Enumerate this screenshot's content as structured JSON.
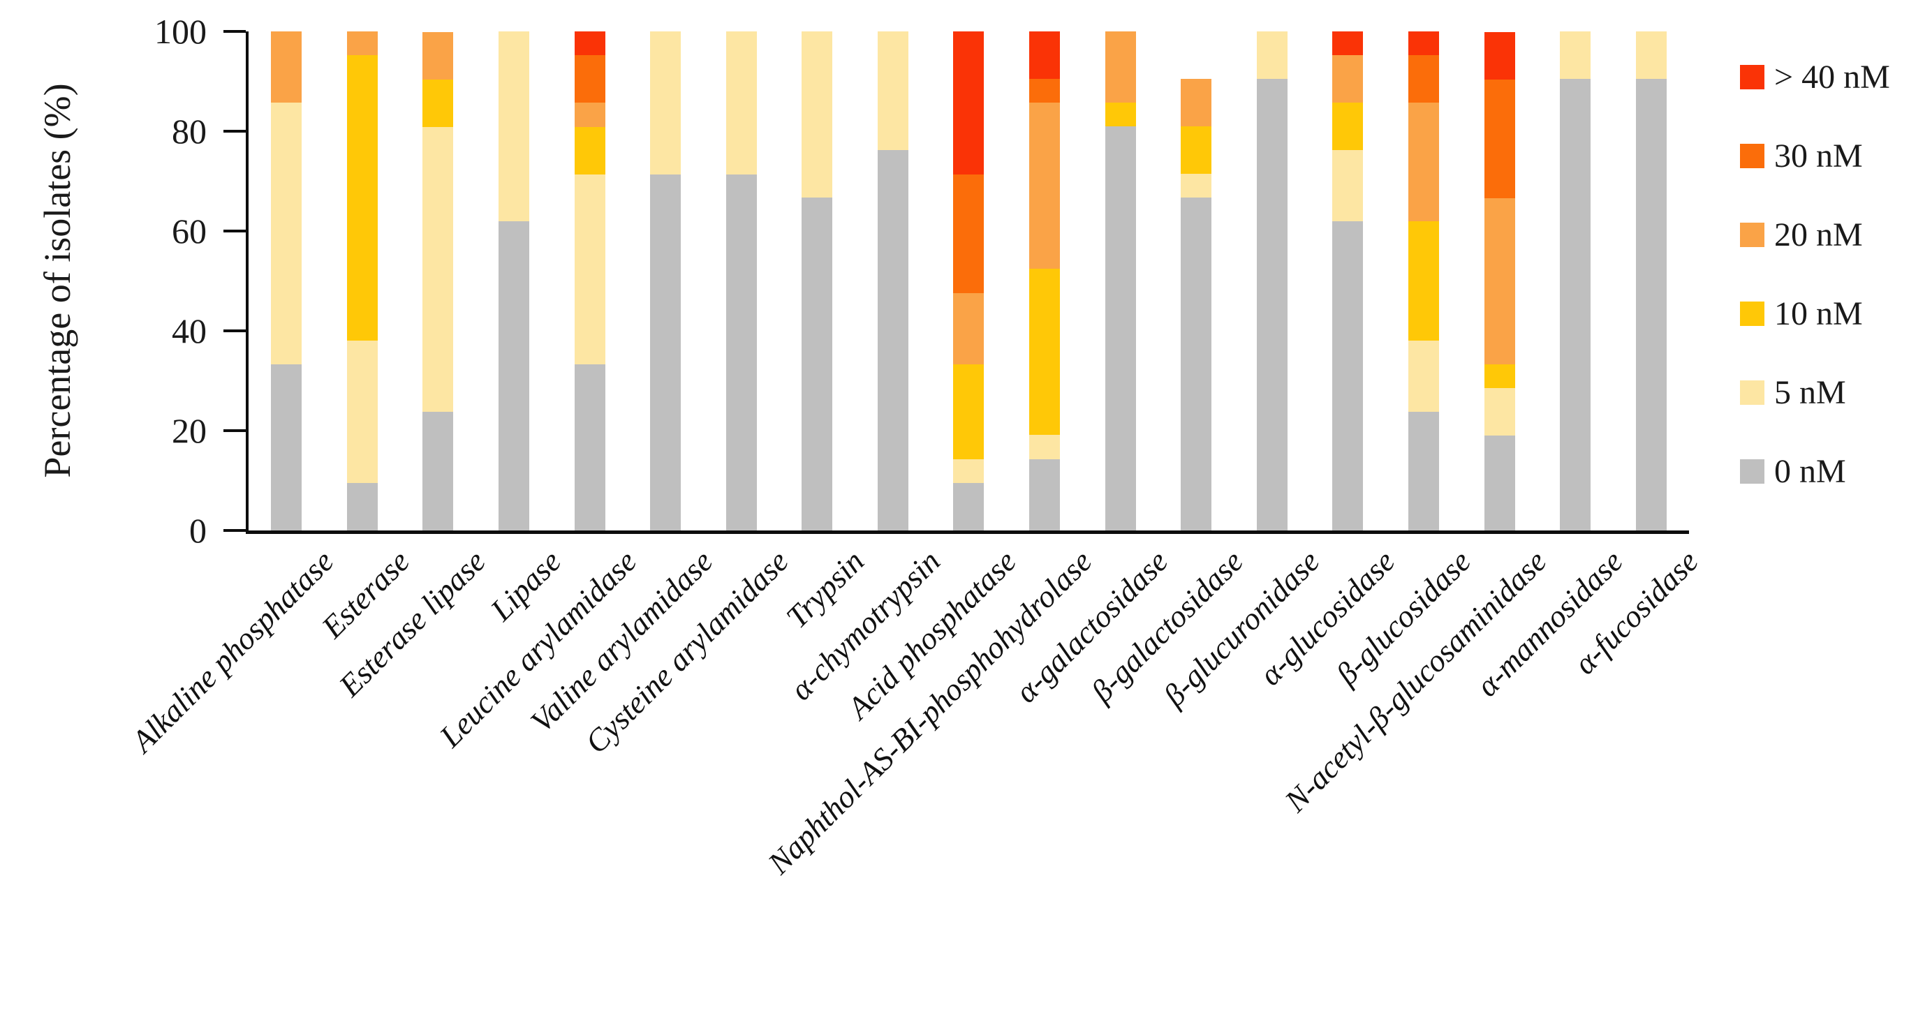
{
  "y_axis": {
    "title": "Percentage of isolates (%)",
    "ticks": [
      0,
      20,
      40,
      60,
      80,
      100
    ],
    "max": 100
  },
  "legend": {
    "position": "right",
    "items": [
      {
        "label": "> 40 nM",
        "color": "#FA3306"
      },
      {
        "label": "30 nM",
        "color": "#FB6D0A"
      },
      {
        "label": "20 nM",
        "color": "#FAA347"
      },
      {
        "label": "10 nM",
        "color": "#FFC807"
      },
      {
        "label": "5 nM",
        "color": "#FDE6A3"
      },
      {
        "label": "0 nM",
        "color": "#BFBFBF"
      }
    ]
  },
  "chart_data": {
    "type": "bar",
    "stacked": true,
    "title": "",
    "xlabel": "",
    "ylabel": "Percentage of isolates (%)",
    "ylim": [
      0,
      100
    ],
    "grid": false,
    "legend_position": "right",
    "x_tick_rotation_deg": 45,
    "categories": [
      "Alkaline phosphatase",
      "Esterase",
      "Esterase lipase",
      "Lipase",
      "Leucine arylamidase",
      "Valine arylamidase",
      "Cysteine arylamidase",
      "Trypsin",
      "α-chymotrypsin",
      "Acid phosphatase",
      "Naphthol-AS-BI-phosphohydrolase",
      "α-galactosidase",
      "β-galactosidase",
      "β-glucuronidase",
      "α-glucosidase",
      "β-glucosidase",
      "N-acetyl-β-glucosaminidase",
      "α-mannosidase",
      "α-fucosidase"
    ],
    "series": [
      {
        "name": "0 nM",
        "color": "#BFBFBF",
        "values": [
          33.3,
          9.5,
          23.8,
          61.9,
          33.3,
          71.4,
          71.4,
          66.7,
          76.2,
          9.5,
          14.3,
          81.0,
          66.7,
          90.5,
          61.9,
          23.8,
          19.0,
          90.5,
          90.5
        ]
      },
      {
        "name": "5 nM",
        "color": "#FDE6A3",
        "values": [
          52.4,
          28.6,
          57.1,
          38.1,
          38.1,
          28.6,
          28.6,
          33.3,
          23.8,
          4.8,
          4.8,
          0,
          4.8,
          9.5,
          14.3,
          14.3,
          9.5,
          9.5,
          9.5
        ]
      },
      {
        "name": "10 nM",
        "color": "#FFC807",
        "values": [
          0,
          57.1,
          9.5,
          0,
          9.5,
          0,
          0,
          0,
          0,
          19.0,
          33.3,
          4.8,
          9.5,
          0,
          9.5,
          23.8,
          4.8,
          0,
          0
        ]
      },
      {
        "name": "20 nM",
        "color": "#FAA347",
        "values": [
          14.3,
          4.8,
          9.5,
          0,
          4.8,
          0,
          0,
          0,
          0,
          14.3,
          33.3,
          14.3,
          9.5,
          0,
          9.5,
          23.8,
          33.3,
          0,
          0
        ]
      },
      {
        "name": "30 nM",
        "color": "#FB6D0A",
        "values": [
          0,
          0,
          0,
          0,
          9.5,
          0,
          0,
          0,
          0,
          23.8,
          4.8,
          0,
          0,
          0,
          0,
          9.5,
          23.8,
          0,
          0
        ]
      },
      {
        "name": "> 40 nM",
        "color": "#FA3306",
        "values": [
          0,
          0,
          0,
          0,
          4.8,
          0,
          0,
          0,
          0,
          28.6,
          9.5,
          0,
          0,
          0,
          4.8,
          4.8,
          9.5,
          0,
          0
        ]
      }
    ]
  }
}
